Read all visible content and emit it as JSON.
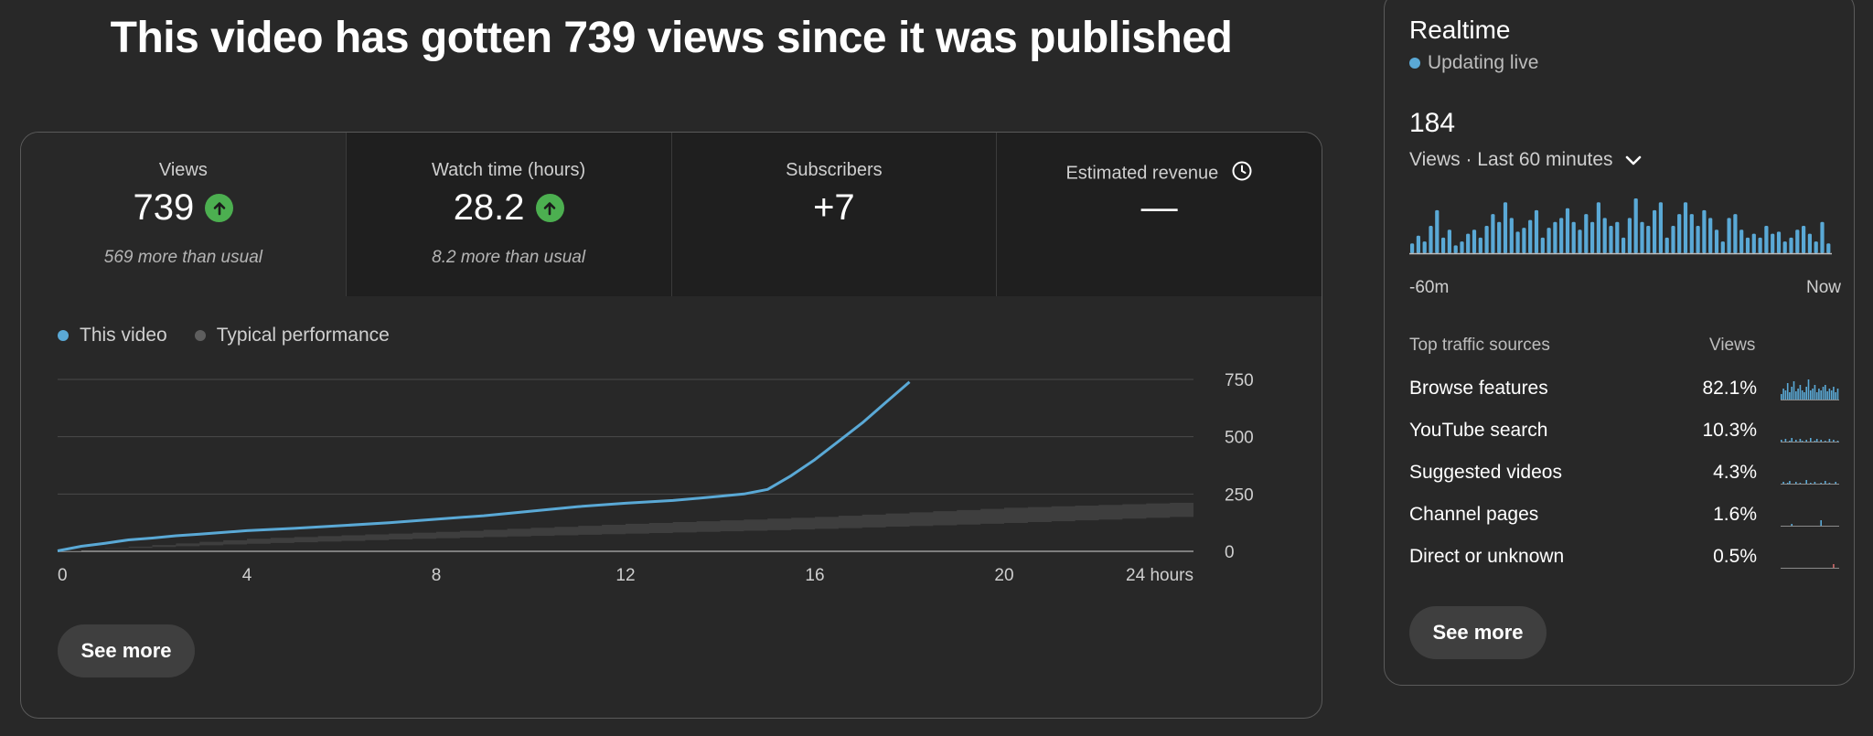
{
  "headline": "This video has gotten 739 views since it was published",
  "metrics": [
    {
      "title": "Views",
      "value": "739",
      "sub": "569 more than usual",
      "trend": "up"
    },
    {
      "title": "Watch time (hours)",
      "value": "28.2",
      "sub": "8.2 more than usual",
      "trend": "up"
    },
    {
      "title": "Subscribers",
      "value": "+7",
      "sub": "",
      "trend": ""
    },
    {
      "title": "Estimated revenue",
      "value": "—",
      "sub": "",
      "trend": ""
    }
  ],
  "legend": {
    "this_video": "This video",
    "typical": "Typical performance"
  },
  "colors": {
    "accent": "#5aa9d6",
    "typical": "#5e5e5e",
    "band": "#3e3e3e",
    "up": "#4caf50"
  },
  "chart_data": {
    "type": "line",
    "x_tick_labels": [
      "0",
      "4",
      "8",
      "12",
      "16",
      "20",
      "24 hours"
    ],
    "y_tick_labels": [
      "750",
      "500",
      "250",
      "0"
    ],
    "xlim": [
      0,
      24
    ],
    "ylim": [
      0,
      750
    ],
    "grid": true,
    "series": [
      {
        "name": "This video",
        "x": [
          0,
          0.5,
          1,
          1.5,
          2,
          2.5,
          3,
          4,
          5,
          6,
          7,
          8,
          9,
          10,
          11,
          12,
          13,
          14,
          14.5,
          15,
          15.5,
          16,
          16.5,
          17,
          17.5,
          18
        ],
        "y": [
          2,
          22,
          35,
          50,
          58,
          68,
          75,
          90,
          100,
          112,
          125,
          140,
          155,
          175,
          195,
          210,
          222,
          240,
          250,
          270,
          330,
          400,
          480,
          560,
          650,
          739
        ]
      }
    ],
    "typical_band": {
      "x": [
        0,
        4,
        8,
        12,
        16,
        20,
        24
      ],
      "low": [
        0,
        30,
        55,
        75,
        95,
        120,
        150
      ],
      "high": [
        0,
        55,
        85,
        120,
        150,
        190,
        215
      ]
    }
  },
  "main_button": "See more",
  "realtime": {
    "title": "Realtime",
    "live_label": "Updating live",
    "count": "184",
    "range_label": "Views · Last 60 minutes",
    "axis_left": "-60m",
    "axis_right": "Now",
    "bars": [
      5,
      9,
      6,
      14,
      22,
      8,
      12,
      4,
      6,
      10,
      12,
      8,
      14,
      20,
      16,
      26,
      18,
      11,
      13,
      17,
      22,
      8,
      13,
      16,
      18,
      23,
      16,
      12,
      20,
      16,
      26,
      18,
      14,
      16,
      8,
      18,
      28,
      16,
      14,
      22,
      26,
      8,
      14,
      20,
      26,
      20,
      14,
      22,
      18,
      12,
      6,
      18,
      20,
      12,
      8,
      10,
      8,
      14,
      10,
      11,
      6,
      8,
      12,
      14,
      10,
      6,
      16,
      5
    ],
    "traffic_header": {
      "source": "Top traffic sources",
      "views": "Views"
    },
    "traffic": [
      {
        "name": "Browse features",
        "pct": "82.1%"
      },
      {
        "name": "YouTube search",
        "pct": "10.3%"
      },
      {
        "name": "Suggested videos",
        "pct": "4.3%"
      },
      {
        "name": "Channel pages",
        "pct": "1.6%"
      },
      {
        "name": "Direct or unknown",
        "pct": "0.5%"
      }
    ],
    "button": "See more"
  },
  "icons": {
    "trend": "arrow-up-icon",
    "revenue_info": "clock-icon",
    "range_toggle": "chevron-down-icon",
    "live": "live-dot-icon"
  }
}
